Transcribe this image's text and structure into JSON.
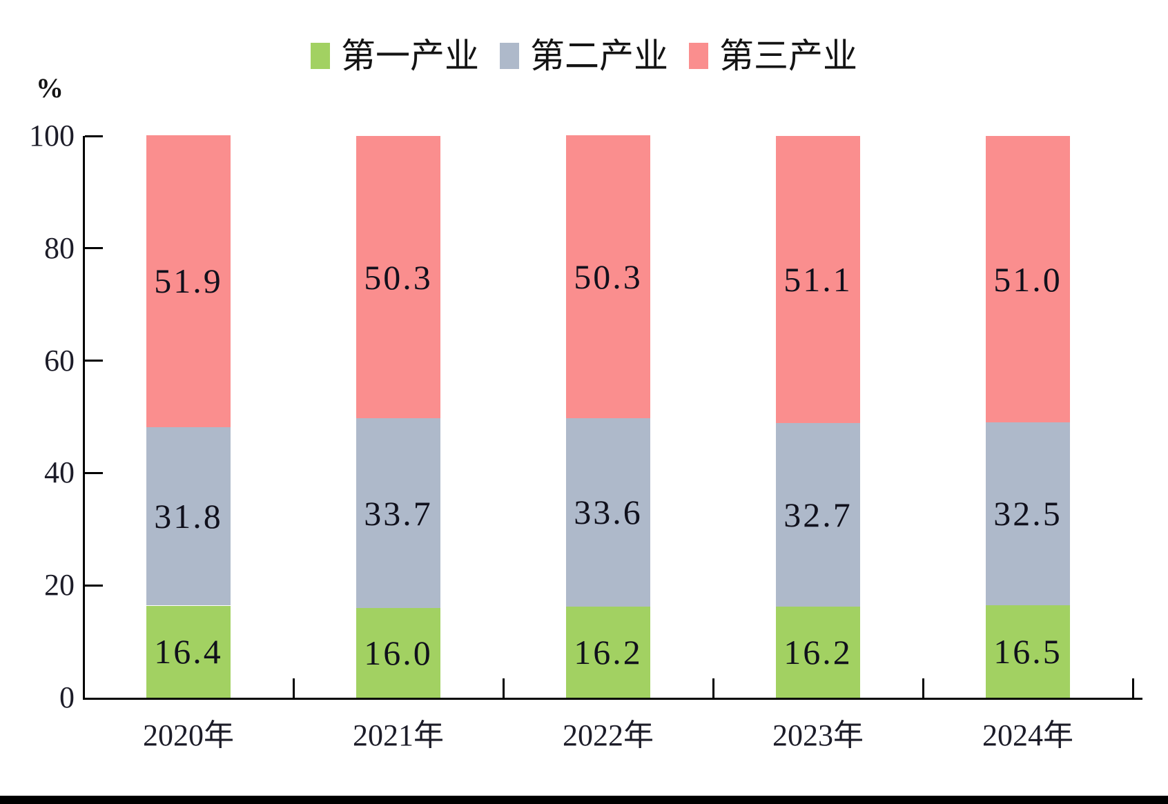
{
  "chart_data": {
    "type": "bar",
    "stacked": true,
    "title": "",
    "unit_label": "%",
    "categories": [
      "2020年",
      "2021年",
      "2022年",
      "2023年",
      "2024年"
    ],
    "series": [
      {
        "name": "第一产业",
        "color": "#A2D162",
        "values": [
          16.4,
          16.0,
          16.2,
          16.2,
          16.5
        ]
      },
      {
        "name": "第二产业",
        "color": "#AEB9CA",
        "values": [
          31.8,
          33.7,
          33.6,
          32.7,
          32.5
        ]
      },
      {
        "name": "第三产业",
        "color": "#FA8E8E",
        "values": [
          51.9,
          50.3,
          50.3,
          51.1,
          51.0
        ]
      }
    ],
    "value_label_decimals": 1,
    "ylim": [
      0,
      100
    ],
    "yticks": [
      0,
      20,
      40,
      60,
      80,
      100
    ],
    "legend_position": "top",
    "grid": false,
    "axis_color": "#000000",
    "text_color": "#141414"
  }
}
